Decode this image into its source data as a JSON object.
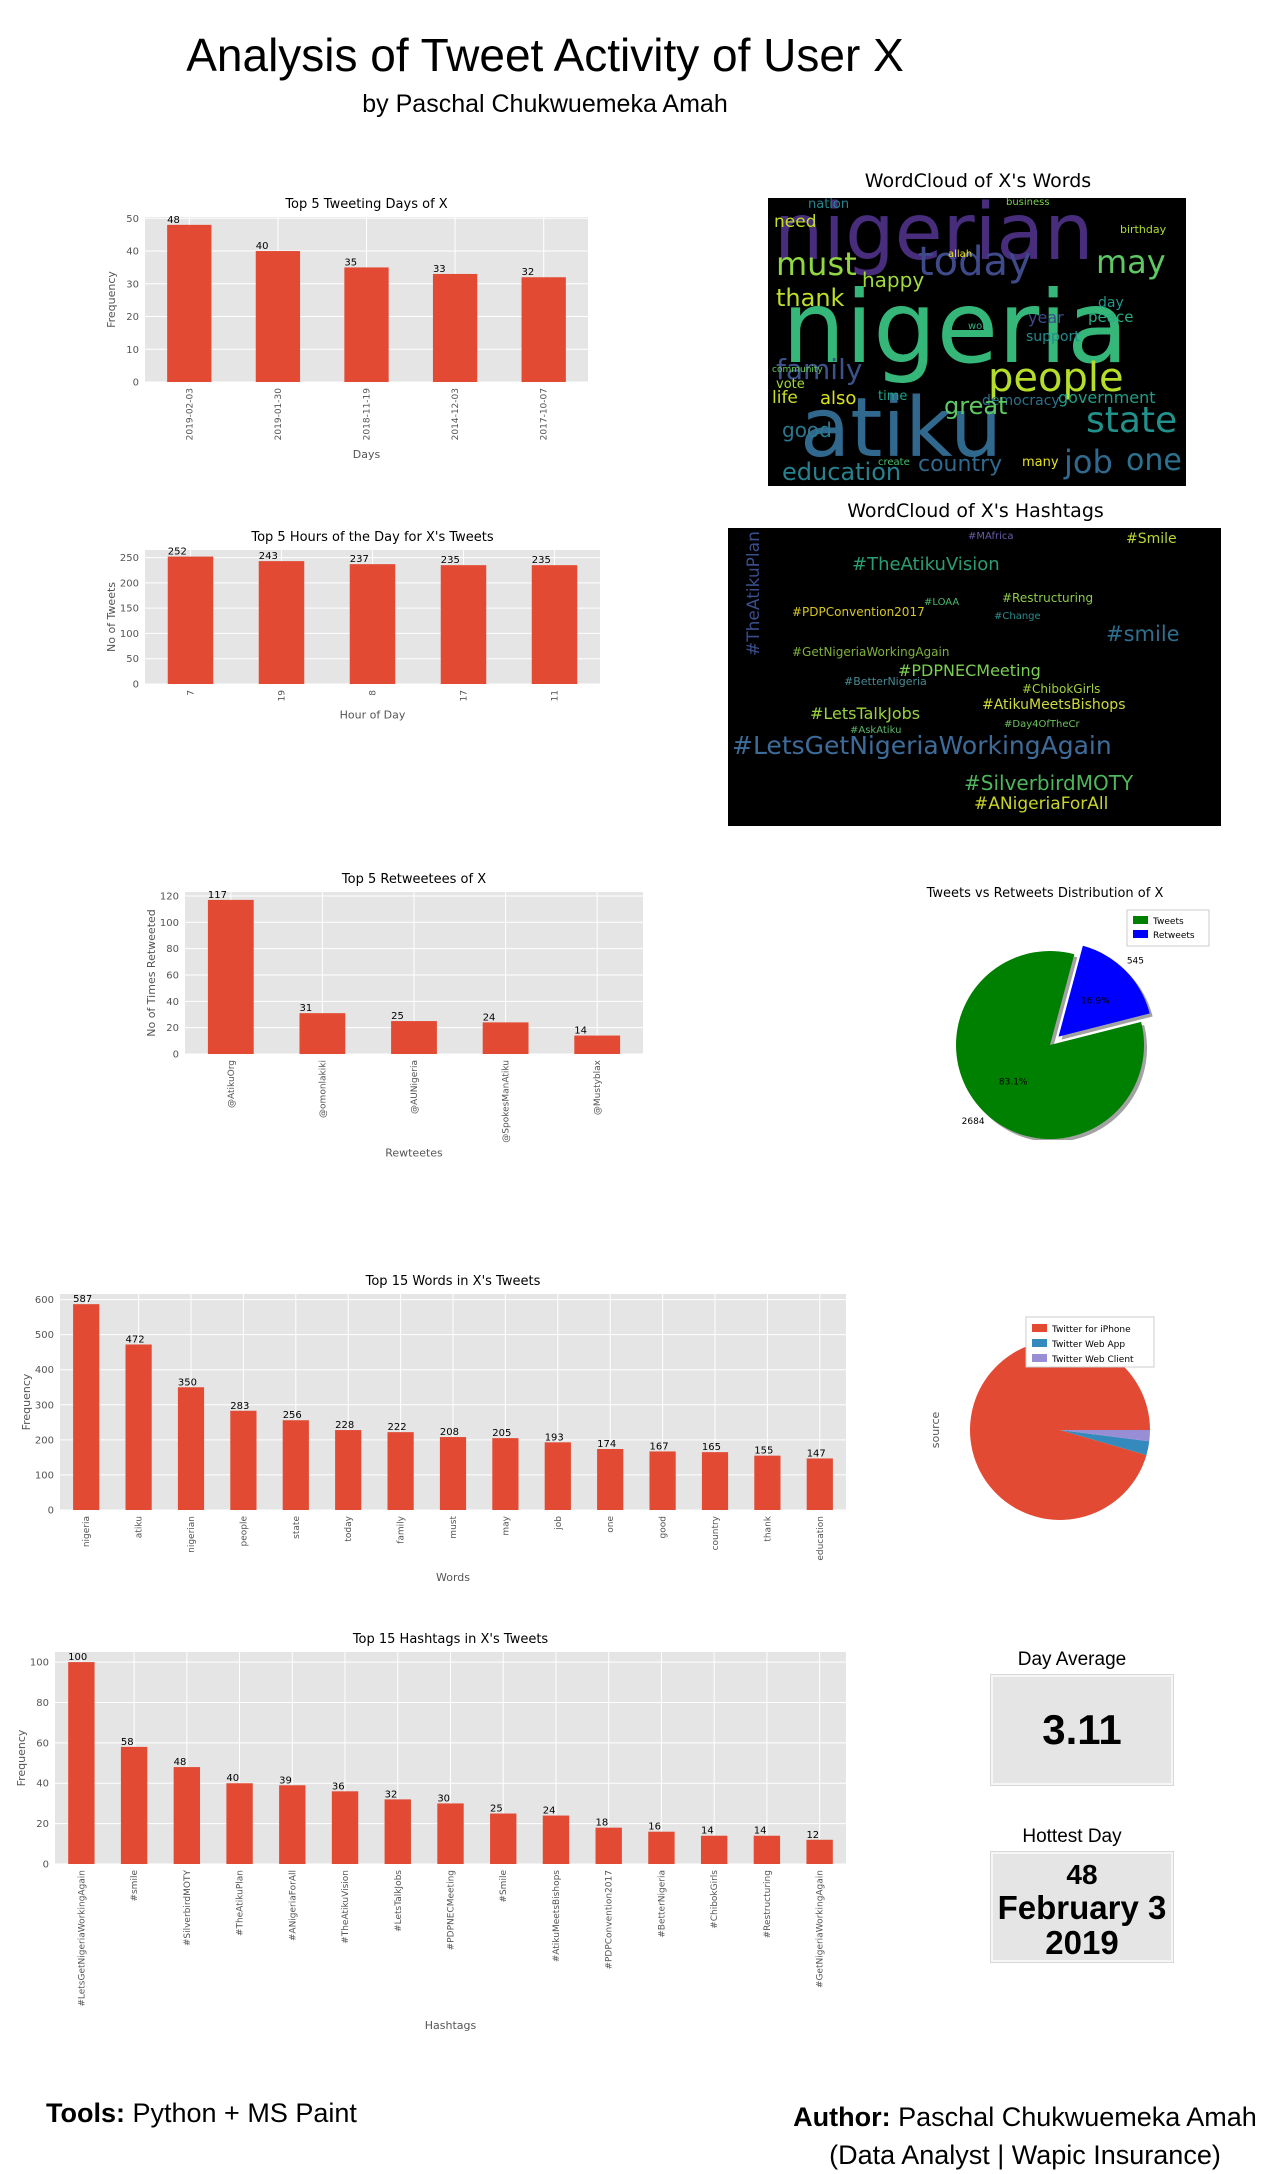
{
  "header": {
    "title": "Analysis of Tweet Activity of User X",
    "byline": "by  Paschal Chukwuemeka Amah"
  },
  "colors": {
    "bar": "#E24A33",
    "panel": "#E5E5E5",
    "pie_tweets": "#008000",
    "pie_retweets": "#0000FF",
    "iphone": "#E24A33",
    "webapp": "#348ABD",
    "webclient": "#988ED5"
  },
  "chart_data": [
    {
      "id": "days",
      "type": "bar",
      "title": "Top 5 Tweeting Days of X",
      "xlabel": "Days",
      "ylabel": "Frequency",
      "categories": [
        "2019-02-03",
        "2019-01-30",
        "2018-11-19",
        "2014-12-03",
        "2017-10-07"
      ],
      "values": [
        48,
        40,
        35,
        33,
        32
      ],
      "yticks": [
        0,
        10,
        20,
        30,
        40,
        50
      ],
      "ylim": [
        0,
        50.4
      ],
      "grid": true
    },
    {
      "id": "hours",
      "type": "bar",
      "title": "Top 5 Hours of the Day for X's Tweets",
      "xlabel": "Hour of Day",
      "ylabel": "No of Tweets",
      "categories": [
        "7",
        "19",
        "8",
        "17",
        "11"
      ],
      "values": [
        252,
        243,
        237,
        235,
        235
      ],
      "yticks": [
        0,
        50,
        100,
        150,
        200,
        250
      ],
      "ylim": [
        0,
        265
      ],
      "grid": true
    },
    {
      "id": "retweetees",
      "type": "bar",
      "title": "Top 5 Retweetees of X",
      "xlabel": "Rewteetes",
      "ylabel": "No of Times Retweeted",
      "categories": [
        "@AtikuOrg",
        "@omonlakiki",
        "@AUNigeria",
        "@SpokesManAtiku",
        "@Mustyblax"
      ],
      "values": [
        117,
        31,
        25,
        24,
        14
      ],
      "yticks": [
        0,
        20,
        40,
        60,
        80,
        100,
        120
      ],
      "ylim": [
        0,
        123
      ],
      "grid": true
    },
    {
      "id": "words",
      "type": "bar",
      "title": "Top 15 Words in X's Tweets",
      "xlabel": "Words",
      "ylabel": "Frequency",
      "categories": [
        "nigeria",
        "atiku",
        "nigerian",
        "people",
        "state",
        "today",
        "family",
        "must",
        "may",
        "job",
        "one",
        "good",
        "country",
        "thank",
        "education"
      ],
      "values": [
        587,
        472,
        350,
        283,
        256,
        228,
        222,
        208,
        205,
        193,
        174,
        167,
        165,
        155,
        147
      ],
      "yticks": [
        0,
        100,
        200,
        300,
        400,
        500,
        600
      ],
      "ylim": [
        0,
        616
      ],
      "grid": true
    },
    {
      "id": "hashtags",
      "type": "bar",
      "title": "Top 15 Hashtags in X's Tweets",
      "xlabel": "Hashtags",
      "ylabel": "Frequency",
      "categories": [
        "#LetsGetNigeriaWorkingAgain",
        "#smile",
        "#SilverbirdMOTY",
        "#TheAtikuPlan",
        "#ANigeriaForAll",
        "#TheAtikuVision",
        "#LetsTalkJobs",
        "#PDPNECMeeting",
        "#Smile",
        "#AtikuMeetsBishops",
        "#PDPConvention2017",
        "#BetterNigeria",
        "#ChibokGirls",
        "#Restructuring",
        "#GetNigeriaWorkingAgain"
      ],
      "values": [
        100,
        58,
        48,
        40,
        39,
        36,
        32,
        30,
        25,
        24,
        18,
        16,
        14,
        14,
        12
      ],
      "yticks": [
        0,
        20,
        40,
        60,
        80,
        100
      ],
      "ylim": [
        0,
        105
      ],
      "grid": true
    },
    {
      "id": "tweets-vs-retweets",
      "type": "pie",
      "title": "Tweets vs Retweets Distribution of X",
      "labels": [
        "Tweets",
        "Retweets"
      ],
      "values": [
        2684,
        545
      ],
      "value_labels": [
        "2684",
        "545"
      ],
      "percent_labels": [
        "83.1%",
        "16.9%"
      ],
      "legend": "top-right",
      "explode_slice": "Retweets"
    },
    {
      "id": "source",
      "type": "pie",
      "ylabel": "source",
      "labels": [
        "Twitter for iPhone",
        "Twitter Web App",
        "Twitter Web Client"
      ],
      "values": [
        0.955,
        0.025,
        0.02
      ],
      "legend": "top"
    }
  ],
  "wordclouds": {
    "words": {
      "title": "WordCloud of X's Words",
      "words": [
        "nigerian",
        "nigeria",
        "atiku",
        "people",
        "today",
        "must",
        "family",
        "may",
        "state",
        "job",
        "one",
        "education",
        "country",
        "good",
        "government",
        "thank",
        "need",
        "happy",
        "support",
        "democracy",
        "life",
        "time",
        "great",
        "also",
        "peace",
        "year",
        "business",
        "nation",
        "birthday",
        "community",
        "create",
        "many",
        "day",
        "vote",
        "allah",
        "work"
      ]
    },
    "hashtags": {
      "title": "WordCloud of X's Hashtags",
      "words": [
        "#LetsGetNigeriaWorkingAgain",
        "#TheAtikuVision",
        "#SilverbirdMOTY",
        "#ANigeriaForAll",
        "#PDPNECMeeting",
        "#smile",
        "#Smile",
        "#LetsTalkJobs",
        "#AtikuMeetsBishops",
        "#PDPConvention2017",
        "#GetNigeriaWorkingAgain",
        "#ChibokGirls",
        "#Restructuring",
        "#TheAtikuPlan",
        "#BetterNigeria",
        "#AskAtiku",
        "#Day4OfTheCr",
        "#Change",
        "#LOAA",
        "#MAfrica"
      ]
    }
  },
  "metrics": {
    "day_average": {
      "title": "Day Average",
      "value": "3.11"
    },
    "hottest_day": {
      "title": "Hottest Day",
      "count": "48",
      "date": "February 3",
      "year": "2019"
    }
  },
  "footer": {
    "tools_label": "Tools:",
    "tools_value": "Python + MS Paint",
    "author_label": "Author:",
    "author_name": "Paschal Chukwuemeka Amah",
    "author_role": "(Data Analyst | Wapic Insurance)"
  }
}
